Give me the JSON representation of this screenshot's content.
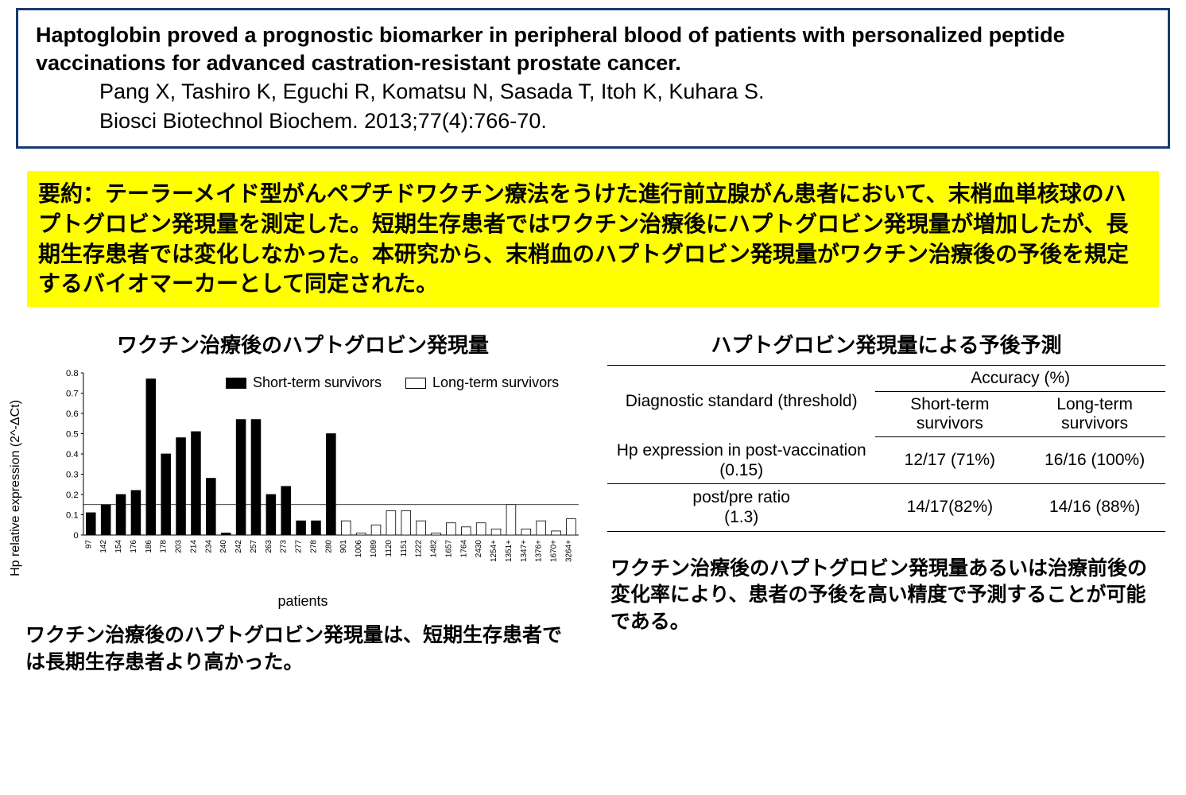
{
  "citation": {
    "title": "Haptoglobin proved a prognostic biomarker in peripheral blood of patients with personalized peptide vaccinations for advanced castration-resistant prostate cancer.",
    "authors": "Pang X, Tashiro K, Eguchi R, Komatsu N, Sasada T, Itoh K, Kuhara S.",
    "journal": "Biosci Biotechnol Biochem. 2013;77(4):766-70."
  },
  "summary": {
    "prefix": "要約：",
    "body": "テーラーメイド型がんペプチドワクチン療法をうけた進行前立腺がん患者において、末梢血単核球のハプトグロビン発現量を測定した。短期生存患者ではワクチン治療後にハプトグロビン発現量が増加したが、長期生存患者では変化しなかった。本研究から、末梢血のハプトグロビン発現量がワクチン治療後の予後を規定するバイオマーカーとして同定された。"
  },
  "chart": {
    "title": "ワクチン治療後のハプトグロビン発現量",
    "type": "bar",
    "y_label": "Hp relative expression (2^-ΔCt)",
    "x_label": "patients",
    "ylim": [
      0,
      0.8
    ],
    "ytick_step": 0.1,
    "yticks": [
      "0",
      "0.1",
      "0.2",
      "0.3",
      "0.4",
      "0.5",
      "0.6",
      "0.7",
      "0.8"
    ],
    "threshold_line": 0.15,
    "axis_color": "#000000",
    "tick_fontsize": 12,
    "label_fontsize": 16,
    "legend": {
      "short": "Short-term survivors",
      "long": "Long-term survivors",
      "short_fill": "#000000",
      "long_fill": "#ffffff",
      "long_stroke": "#000000"
    },
    "bars": [
      {
        "id": "97",
        "value": 0.11,
        "group": "short"
      },
      {
        "id": "142",
        "value": 0.15,
        "group": "short"
      },
      {
        "id": "154",
        "value": 0.2,
        "group": "short"
      },
      {
        "id": "176",
        "value": 0.22,
        "group": "short"
      },
      {
        "id": "186",
        "value": 0.77,
        "group": "short"
      },
      {
        "id": "178",
        "value": 0.4,
        "group": "short"
      },
      {
        "id": "203",
        "value": 0.48,
        "group": "short"
      },
      {
        "id": "214",
        "value": 0.51,
        "group": "short"
      },
      {
        "id": "234",
        "value": 0.28,
        "group": "short"
      },
      {
        "id": "240",
        "value": 0.01,
        "group": "short"
      },
      {
        "id": "242",
        "value": 0.57,
        "group": "short"
      },
      {
        "id": "257",
        "value": 0.57,
        "group": "short"
      },
      {
        "id": "263",
        "value": 0.2,
        "group": "short"
      },
      {
        "id": "273",
        "value": 0.24,
        "group": "short"
      },
      {
        "id": "277",
        "value": 0.07,
        "group": "short"
      },
      {
        "id": "278",
        "value": 0.07,
        "group": "short"
      },
      {
        "id": "280",
        "value": 0.5,
        "group": "short"
      },
      {
        "id": "901",
        "value": 0.07,
        "group": "long"
      },
      {
        "id": "1006",
        "value": 0.01,
        "group": "long"
      },
      {
        "id": "1089",
        "value": 0.05,
        "group": "long"
      },
      {
        "id": "1120",
        "value": 0.12,
        "group": "long"
      },
      {
        "id": "1151",
        "value": 0.12,
        "group": "long"
      },
      {
        "id": "1222",
        "value": 0.07,
        "group": "long"
      },
      {
        "id": "1482",
        "value": 0.01,
        "group": "long"
      },
      {
        "id": "1657",
        "value": 0.06,
        "group": "long"
      },
      {
        "id": "1764",
        "value": 0.04,
        "group": "long"
      },
      {
        "id": "2430",
        "value": 0.06,
        "group": "long"
      },
      {
        "id": "1254+",
        "value": 0.03,
        "group": "long"
      },
      {
        "id": "1351+",
        "value": 0.15,
        "group": "long"
      },
      {
        "id": "1347+",
        "value": 0.03,
        "group": "long"
      },
      {
        "id": "1376+",
        "value": 0.07,
        "group": "long"
      },
      {
        "id": "1670+",
        "value": 0.02,
        "group": "long"
      },
      {
        "id": "3264+",
        "value": 0.08,
        "group": "long"
      }
    ],
    "caption": "ワクチン治療後のハプトグロビン発現量は、短期生存患者では長期生存患者より高かった。"
  },
  "table": {
    "title": "ハプトグロビン発現量による予後予測",
    "header_diag": "Diagnostic standard (threshold)",
    "header_acc": "Accuracy (%)",
    "header_short": "Short-term survivors",
    "header_long": "Long-term survivors",
    "rows": [
      {
        "label": "Hp expression in post-vaccination　(0.15)",
        "short": "12/17 (71%)",
        "long": "16/16 (100%)"
      },
      {
        "label": "post/pre ratio\n(1.3)",
        "short": "14/17(82%)",
        "long": "14/16 (88%)"
      }
    ],
    "caption": "ワクチン治療後のハプトグロビン発現量あるいは治療前後の変化率により、患者の予後を高い精度で予測することが可能である。"
  }
}
